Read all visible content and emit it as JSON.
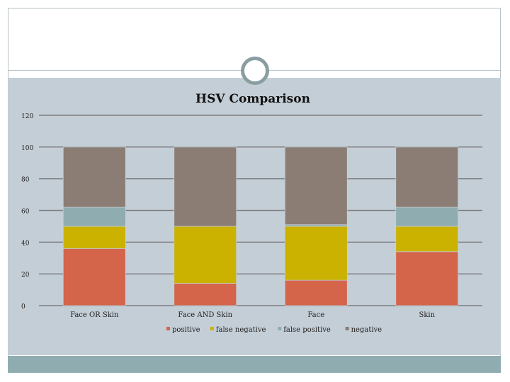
{
  "chart_data": {
    "type": "bar",
    "stacked": true,
    "title": "HSV Comparison",
    "xlabel": "",
    "ylabel": "",
    "ylim": [
      0,
      120
    ],
    "yticks": [
      0,
      20,
      40,
      60,
      80,
      100,
      120
    ],
    "grid": true,
    "legend_position": "bottom",
    "categories": [
      "Face OR Skin",
      "Face AND Skin",
      "Face",
      "Skin"
    ],
    "series": [
      {
        "name": "positive",
        "color": "#d4644a",
        "values": [
          36,
          14,
          16,
          34
        ]
      },
      {
        "name": "false negative",
        "color": "#cbb100",
        "values": [
          14,
          36,
          34,
          16
        ]
      },
      {
        "name": "false positive",
        "color": "#8fadb0",
        "values": [
          12,
          0,
          1,
          12
        ]
      },
      {
        "name": "negative",
        "color": "#8b7d73",
        "values": [
          38,
          50,
          49,
          38
        ]
      }
    ]
  }
}
